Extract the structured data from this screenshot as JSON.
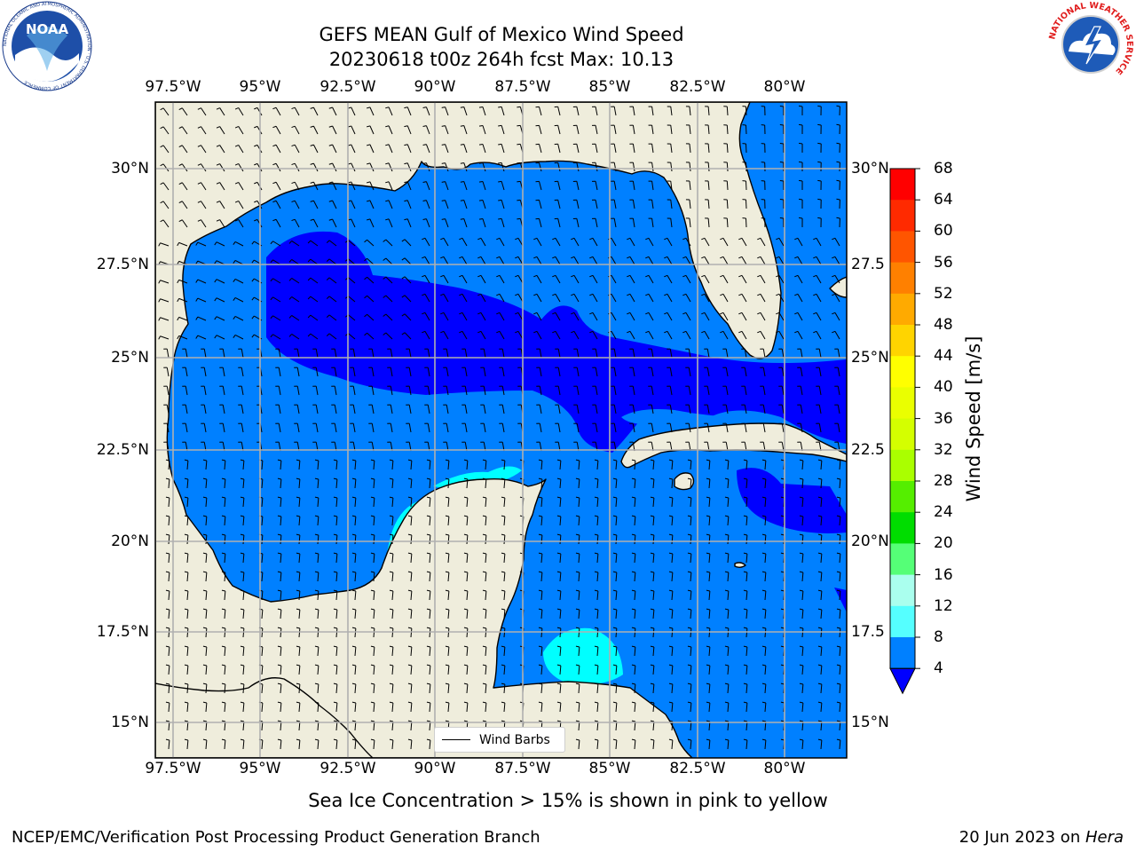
{
  "title_line1": "GEFS MEAN Gulf of Mexico Wind Speed",
  "title_line2": "20230618 t00z 264h fcst   Max: 10.13",
  "lon_ticks": [
    "97.5°W",
    "95°W",
    "92.5°W",
    "90°W",
    "87.5°W",
    "85°W",
    "82.5°W",
    "80°W"
  ],
  "lat_ticks_left": [
    "30°N",
    "27.5°N",
    "25°N",
    "22.5°N",
    "20°N",
    "17.5°N",
    "15°N"
  ],
  "lat_ticks_right": [
    "30°N",
    "27.5",
    "25°N",
    "22.5",
    "20°N",
    "17.5",
    "15°N"
  ],
  "colorbar": {
    "label": "Wind Speed [m/s]",
    "ticks": [
      "68",
      "64",
      "60",
      "56",
      "52",
      "48",
      "44",
      "40",
      "36",
      "32",
      "28",
      "24",
      "20",
      "16",
      "12",
      "8",
      "4"
    ],
    "colors": [
      "#ff0000",
      "#ff2a00",
      "#ff5500",
      "#ff8000",
      "#ffaa00",
      "#ffd400",
      "#ffff00",
      "#eaff00",
      "#d4ff00",
      "#aaff00",
      "#55ee00",
      "#00dd00",
      "#55ff77",
      "#aaffee",
      "#55ffff",
      "#00ffff",
      "#0080ff"
    ],
    "under_color": "#0000ff"
  },
  "legend_label": "Wind Barbs",
  "subtitle": "Sea Ice Concentration > 15% is shown in pink to yellow",
  "footer_left": "NCEP/EMC/Verification Post Processing Product Generation Branch",
  "footer_right_date": "20 Jun 2023 on ",
  "footer_right_host": "Hera",
  "noaa_logo_text": "NOAA",
  "noaa_ring_text": "NATIONAL OCEANIC AND ATMOSPHERIC ADMINISTRATION · U.S. DEPARTMENT OF COMMERCE",
  "nws_ring_text": "NATIONAL WEATHER SERVICE",
  "colors": {
    "land": "#efeddc",
    "wind_4_8": "#0080ff",
    "wind_lt4": "#0000ff",
    "wind_8_12": "#00ffff",
    "grid": "#b0b0b0"
  }
}
